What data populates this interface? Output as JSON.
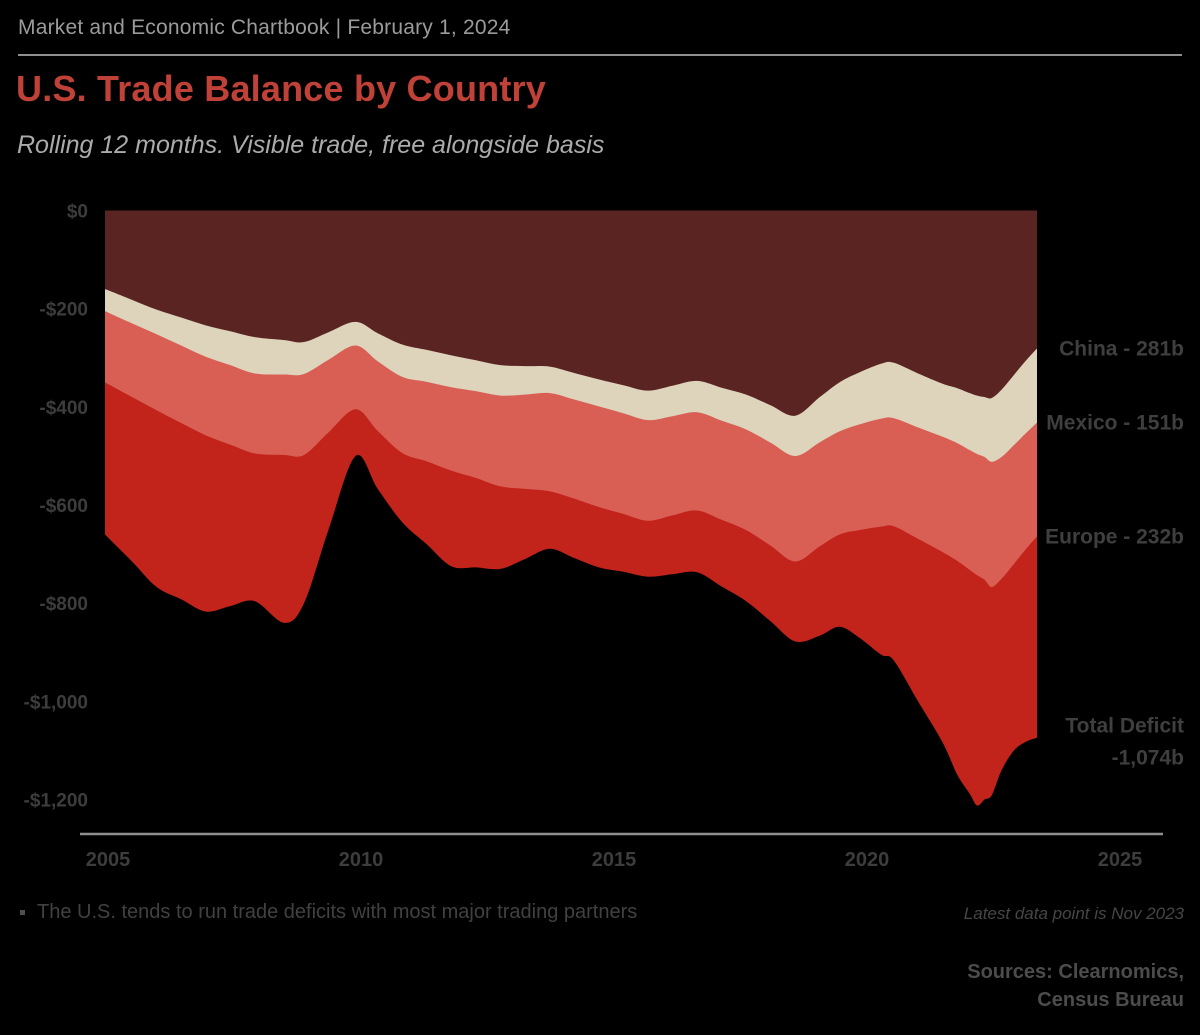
{
  "header": {
    "kicker": "Market and Economic Chartbook | February 1, 2024"
  },
  "title": "U.S. Trade Balance by Country",
  "subtitle": "Rolling 12 months. Visible trade, free alongside basis",
  "footer": {
    "bullet": "The U.S. tends to run trade deficits with most major trading partners",
    "latest_note": "Latest data point is Nov 2023",
    "sources": "Sources: Clearnomics,\nCensus Bureau"
  },
  "colors": {
    "background": "#000000",
    "title_red": "#c04137",
    "china_band": "#5a2422",
    "mexico_band": "#ded3bb",
    "europe_band": "#d95f55",
    "other_band": "#c2231b",
    "axis_line": "#8f8f8f",
    "tick_text": "#3d3d3d",
    "annotation_text": "#3f3f3f"
  },
  "chart_data": {
    "type": "area",
    "stacked": true,
    "title": "U.S. Trade Balance by Country",
    "units": "USD billions (trade deficit shown as negative)",
    "xlabel": "",
    "ylabel": "",
    "xlim": [
      2004.95,
      2025.8
    ],
    "ylim": [
      -1300,
      0
    ],
    "grid": false,
    "legend_position": "right-annotations",
    "x": [
      2004.95,
      2005.5,
      2006,
      2006.5,
      2007,
      2007.5,
      2008,
      2008.6,
      2009,
      2009.5,
      2010.05,
      2010.5,
      2011,
      2011.5,
      2012,
      2012.5,
      2013,
      2013.5,
      2014,
      2014.5,
      2015,
      2015.5,
      2016,
      2016.5,
      2017,
      2017.5,
      2018,
      2018.5,
      2019,
      2019.5,
      2019.9,
      2020.3,
      2020.75,
      2021,
      2021.5,
      2022,
      2022.3,
      2022.55,
      2022.7,
      2022.85,
      2023,
      2023.2,
      2023.45,
      2023.7,
      2023.92
    ],
    "series": [
      {
        "name": "China",
        "deficit_billions": [
          160,
          182,
          202,
          218,
          234,
          246,
          258,
          264,
          268,
          248,
          227,
          250,
          273,
          284,
          295,
          305,
          315,
          317,
          318,
          331,
          344,
          356,
          367,
          357,
          347,
          361,
          375,
          397,
          418,
          380,
          350,
          330,
          312,
          310,
          332,
          353,
          362,
          372,
          377,
          380,
          382,
          365,
          335,
          305,
          281
        ]
      },
      {
        "name": "Mexico",
        "deficit_billions": [
          45,
          48,
          50,
          57,
          64,
          69,
          74,
          70,
          65,
          56,
          48,
          57,
          66,
          65,
          65,
          63,
          62,
          58,
          54,
          54,
          55,
          57,
          60,
          62,
          64,
          67,
          71,
          76,
          82,
          92,
          100,
          106,
          112,
          113,
          110,
          108,
          112,
          116,
          119,
          122,
          130,
          137,
          143,
          148,
          151
        ]
      },
      {
        "name": "Europe",
        "deficit_billions": [
          145,
          150,
          155,
          158,
          160,
          162,
          163,
          164,
          165,
          148,
          130,
          142,
          155,
          162,
          170,
          177,
          185,
          192,
          200,
          202,
          205,
          205,
          205,
          202,
          200,
          202,
          205,
          210,
          215,
          212,
          210,
          215,
          220,
          220,
          227,
          235,
          240,
          244,
          247,
          250,
          255,
          248,
          242,
          236,
          232
        ]
      }
    ],
    "total_deficit_billions": [
      660,
      715,
      767,
      792,
      817,
      806,
      796,
      840,
      800,
      650,
      500,
      567,
      635,
      680,
      725,
      727,
      730,
      710,
      689,
      708,
      727,
      736,
      746,
      741,
      737,
      766,
      796,
      837,
      878,
      866,
      848,
      870,
      905,
      916,
      1000,
      1084,
      1150,
      1188,
      1212,
      1200,
      1191,
      1140,
      1100,
      1082,
      1074
    ],
    "right_labels": [
      {
        "text": "China - 281b",
        "boundary_value": 281,
        "kind": "single"
      },
      {
        "text": "Mexico - 151b",
        "boundary_value": 432,
        "kind": "single"
      },
      {
        "text": "Europe - 232b",
        "boundary_value": 664,
        "kind": "single"
      },
      {
        "text": "Total Deficit",
        "boundary_value": 1074,
        "kind": "total-line1"
      },
      {
        "text": "-1,074b",
        "boundary_value": 1074,
        "kind": "total-line2"
      }
    ],
    "y_ticks": [
      {
        "label": "$0",
        "value": 0
      },
      {
        "label": "-$200",
        "value": -200
      },
      {
        "label": "-$400",
        "value": -400
      },
      {
        "label": "-$600",
        "value": -600
      },
      {
        "label": "-$800",
        "value": -800
      },
      {
        "label": "-$1,000",
        "value": -1000
      },
      {
        "label": "-$1,200",
        "value": -1200
      }
    ],
    "x_ticks": [
      {
        "label": "2005",
        "year": 2005
      },
      {
        "label": "2010",
        "year": 2010
      },
      {
        "label": "2015",
        "year": 2015
      },
      {
        "label": "2020",
        "year": 2020
      },
      {
        "label": "2025",
        "year": 2025
      }
    ]
  }
}
